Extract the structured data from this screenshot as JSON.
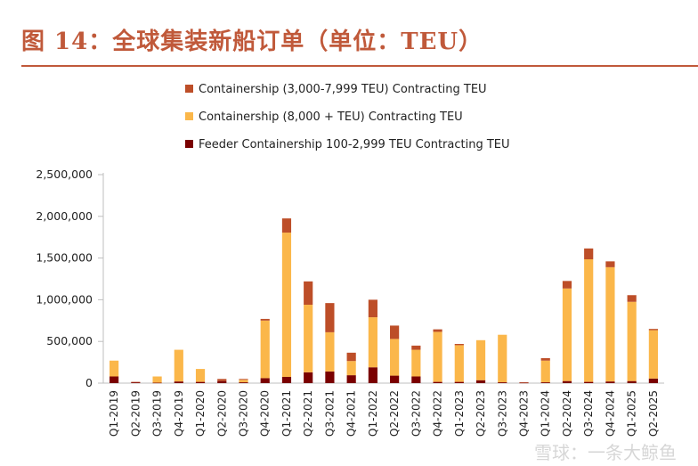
{
  "figure": {
    "title": "图 14：全球集装新船订单（单位：TEU）"
  },
  "watermark": "雪球：一条大鲸鱼",
  "colors": {
    "accent": "#c0593a",
    "feeder": "#7a0000",
    "large": "#fbb74a",
    "mid": "#bd4e28",
    "axis": "#d9d9d9"
  },
  "chart_data": {
    "type": "bar",
    "stacked": true,
    "title": "图 14：全球集装新船订单（单位：TEU）",
    "xlabel": "",
    "ylabel": "",
    "ylim": [
      0,
      2500000
    ],
    "yticks": [
      0,
      500000,
      1000000,
      1500000,
      2000000,
      2500000
    ],
    "ytick_labels": [
      "0",
      "500,000",
      "1,000,000",
      "1,500,000",
      "2,000,000",
      "2,500,000"
    ],
    "legend_position": "top",
    "categories": [
      "Q1-2019",
      "Q2-2019",
      "Q3-2019",
      "Q4-2019",
      "Q1-2020",
      "Q2-2020",
      "Q3-2020",
      "Q4-2020",
      "Q1-2021",
      "Q2-2021",
      "Q3-2021",
      "Q4-2021",
      "Q1-2022",
      "Q2-2022",
      "Q3-2022",
      "Q4-2022",
      "Q1-2023",
      "Q2-2023",
      "Q3-2023",
      "Q4-2023",
      "Q1-2024",
      "Q2-2024",
      "Q3-2024",
      "Q4-2024",
      "Q1-2025",
      "Q2-2025"
    ],
    "series": [
      {
        "name": "Feeder Containership 100-2,999 TEU Contracting TEU",
        "color": "#7a0000",
        "values": [
          80000,
          10000,
          5000,
          20000,
          15000,
          25000,
          10000,
          60000,
          75000,
          130000,
          140000,
          95000,
          190000,
          90000,
          80000,
          15000,
          15000,
          35000,
          10000,
          5000,
          10000,
          25000,
          15000,
          20000,
          25000,
          55000
        ]
      },
      {
        "name": "Containership (8,000 + TEU) Contracting TEU",
        "color": "#fbb74a",
        "values": [
          190000,
          0,
          75000,
          380000,
          155000,
          0,
          30000,
          690000,
          1730000,
          810000,
          470000,
          170000,
          600000,
          440000,
          320000,
          600000,
          440000,
          480000,
          570000,
          0,
          260000,
          1110000,
          1470000,
          1370000,
          950000,
          580000
        ]
      },
      {
        "name": "Containership (3,000-7,999 TEU) Contracting TEU",
        "color": "#bd4e28",
        "values": [
          0,
          5000,
          0,
          0,
          0,
          25000,
          10000,
          20000,
          170000,
          280000,
          350000,
          100000,
          210000,
          160000,
          50000,
          30000,
          15000,
          0,
          0,
          5000,
          30000,
          90000,
          130000,
          70000,
          80000,
          15000
        ]
      }
    ],
    "legend_order": [
      2,
      1,
      0
    ]
  }
}
